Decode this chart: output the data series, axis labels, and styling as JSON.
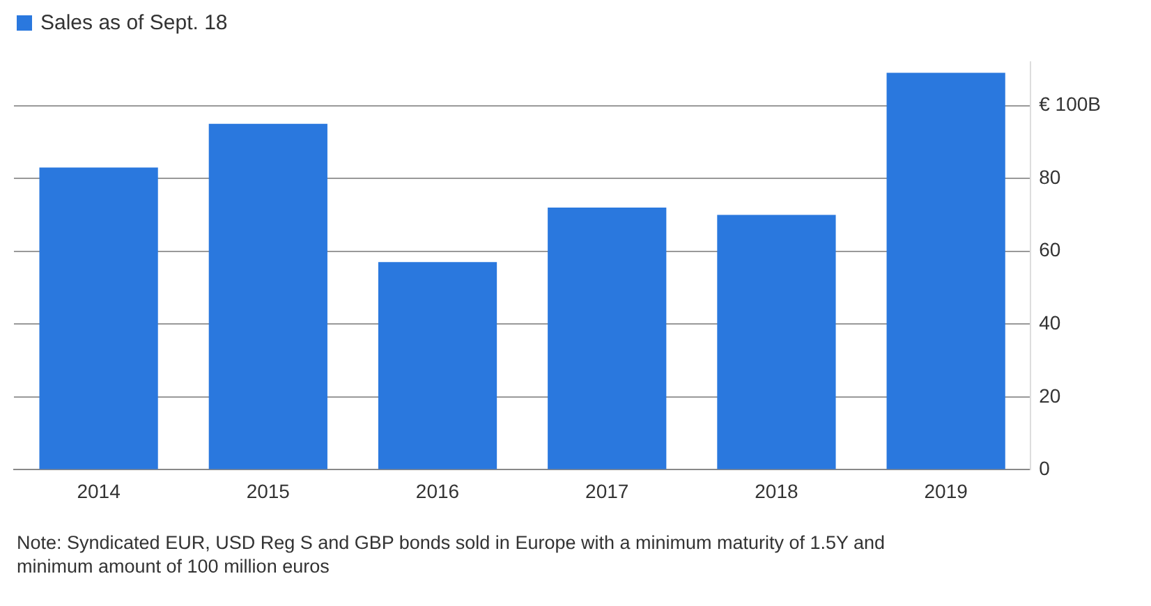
{
  "chart_data": {
    "type": "bar",
    "categories": [
      "2014",
      "2015",
      "2016",
      "2017",
      "2018",
      "2019"
    ],
    "series": [
      {
        "name": "Sales as of Sept. 18",
        "color": "#2a78de",
        "values": [
          83,
          95,
          57,
          72,
          70,
          109
        ]
      }
    ],
    "ylim": [
      0,
      112
    ],
    "yticks": [
      0,
      20,
      40,
      60,
      80,
      {
        "value": 100,
        "label": "€ 100B"
      }
    ],
    "grid": "y",
    "legend": "top left",
    "annotations": [
      "Note: Syndicated EUR, USD Reg S and GBP bonds sold in Europe with a minimum maturity of 1.5Y and minimum amount of 100 million euros"
    ]
  }
}
